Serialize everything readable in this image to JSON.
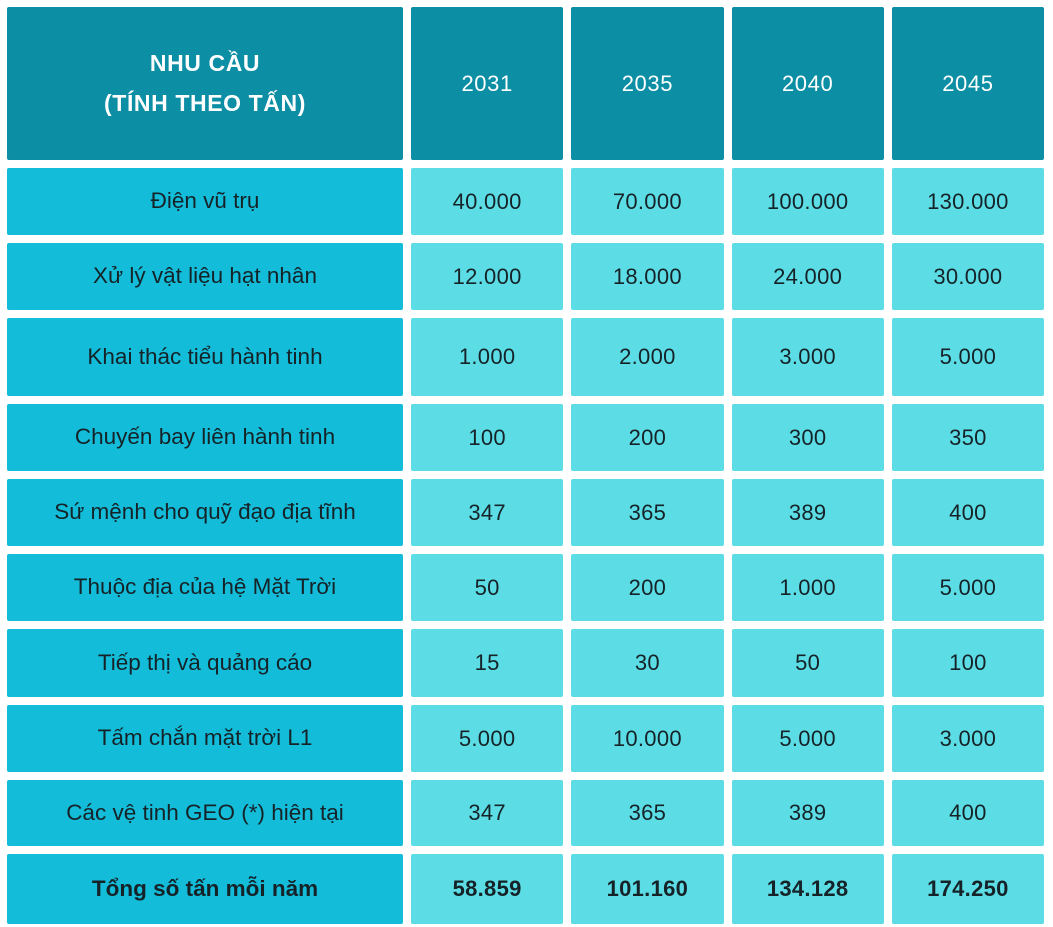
{
  "colors": {
    "header_bg": "#0c8ea4",
    "header_text": "#ffffff",
    "label_bg": "#13bcd8",
    "value_bg": "#5cdde5",
    "body_text": "#152328",
    "gap": "#ffffff"
  },
  "table": {
    "header": {
      "title_line1": "NHU CẦU",
      "title_line2": "(TÍNH THEO TẤN)",
      "years": [
        "2031",
        "2035",
        "2040",
        "2045"
      ]
    },
    "rows": [
      {
        "label": "Điện vũ trụ",
        "values": [
          "40.000",
          "70.000",
          "100.000",
          "130.000"
        ]
      },
      {
        "label": "Xử lý vật liệu hạt nhân",
        "values": [
          "12.000",
          "18.000",
          "24.000",
          "30.000"
        ]
      },
      {
        "label": "Khai thác tiểu hành tinh",
        "values": [
          "1.000",
          "2.000",
          "3.000",
          "5.000"
        ]
      },
      {
        "label": "Chuyến bay liên hành tinh",
        "values": [
          "100",
          "200",
          "300",
          "350"
        ]
      },
      {
        "label": "Sứ mệnh cho quỹ đạo địa tĩnh",
        "values": [
          "347",
          "365",
          "389",
          "400"
        ]
      },
      {
        "label": "Thuộc địa của hệ Mặt Trời",
        "values": [
          "50",
          "200",
          "1.000",
          "5.000"
        ]
      },
      {
        "label": "Tiếp thị và quảng cáo",
        "values": [
          "15",
          "30",
          "50",
          "100"
        ]
      },
      {
        "label": "Tấm chắn mặt trời L1",
        "values": [
          "5.000",
          "10.000",
          "5.000",
          "3.000"
        ]
      },
      {
        "label": "Các vệ tinh GEO (*) hiện tại",
        "values": [
          "347",
          "365",
          "389",
          "400"
        ]
      }
    ],
    "total_row": {
      "label": "Tổng số tấn mỗi năm",
      "values": [
        "58.859",
        "101.160",
        "134.128",
        "174.250"
      ]
    }
  },
  "chart_data": {
    "type": "table",
    "title": "NHU CẦU (TÍNH THEO TẤN)",
    "categories": [
      "2031",
      "2035",
      "2040",
      "2045"
    ],
    "series": [
      {
        "name": "Điện vũ trụ",
        "values": [
          40000,
          70000,
          100000,
          130000
        ]
      },
      {
        "name": "Xử lý vật liệu hạt nhân",
        "values": [
          12000,
          18000,
          24000,
          30000
        ]
      },
      {
        "name": "Khai thác tiểu hành tinh",
        "values": [
          1000,
          2000,
          3000,
          5000
        ]
      },
      {
        "name": "Chuyến bay liên hành tinh",
        "values": [
          100,
          200,
          300,
          350
        ]
      },
      {
        "name": "Sứ mệnh cho quỹ đạo địa tĩnh",
        "values": [
          347,
          365,
          389,
          400
        ]
      },
      {
        "name": "Thuộc địa của hệ Mặt Trời",
        "values": [
          50,
          200,
          1000,
          5000
        ]
      },
      {
        "name": "Tiếp thị và quảng cáo",
        "values": [
          15,
          30,
          50,
          100
        ]
      },
      {
        "name": "Tấm chắn mặt trời L1",
        "values": [
          5000,
          10000,
          5000,
          3000
        ]
      },
      {
        "name": "Các vệ tinh GEO (*) hiện tại",
        "values": [
          347,
          365,
          389,
          400
        ]
      },
      {
        "name": "Tổng số tấn mỗi năm",
        "values": [
          58859,
          101160,
          134128,
          174250
        ]
      }
    ]
  }
}
